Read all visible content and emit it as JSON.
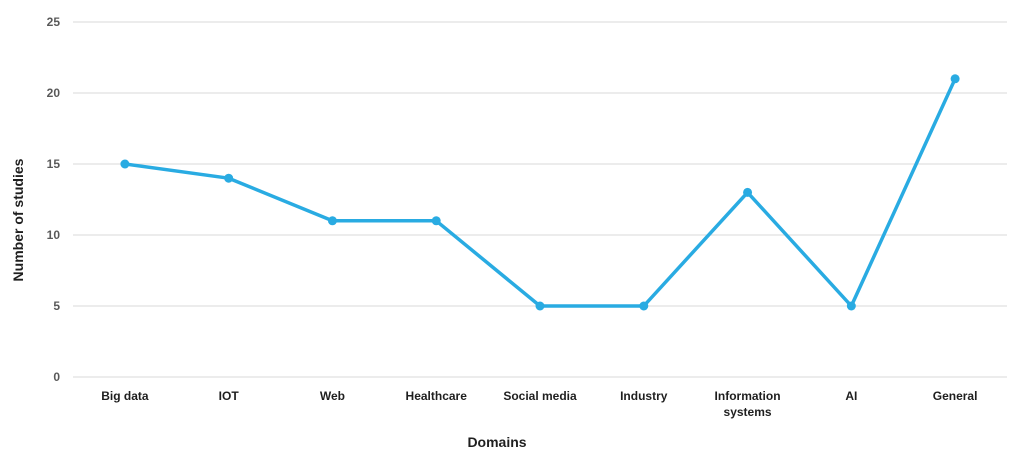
{
  "chart_data": {
    "type": "line",
    "title": "",
    "xlabel": "Domains",
    "ylabel": "Number of studies",
    "categories": [
      "Big data",
      "IOT",
      "Web",
      "Healthcare",
      "Social media",
      "Industry",
      "Information systems",
      "AI",
      "General"
    ],
    "series": [
      {
        "values": [
          15,
          14,
          11,
          11,
          5,
          5,
          13,
          5,
          21
        ],
        "color": "#29ABE2"
      }
    ],
    "ylim": [
      0,
      25
    ],
    "yticks": [
      0,
      5,
      10,
      15,
      20,
      25
    ],
    "grid": true,
    "legend": "none",
    "gridline_color": "#D9D9D9"
  }
}
